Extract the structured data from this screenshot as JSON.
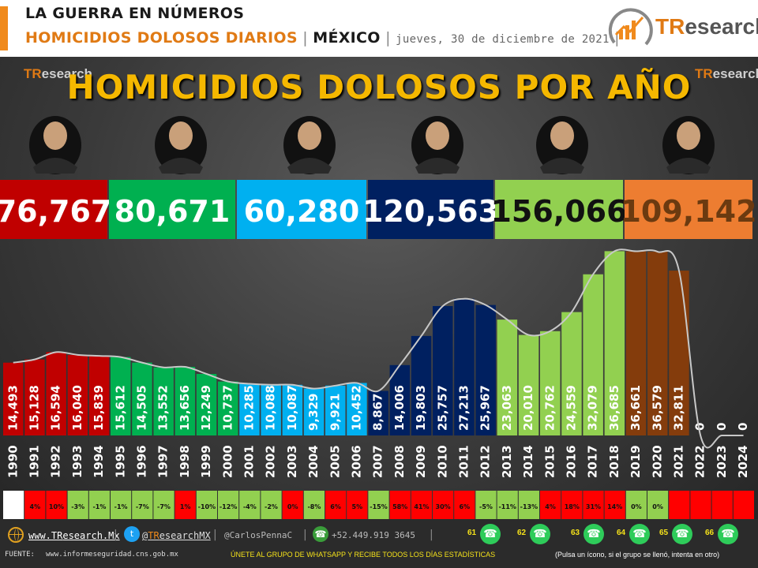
{
  "header": {
    "line1": "LA GUERRA EN NÚMEROS",
    "line2_main": "HOMICIDIOS DOLOSOS DIARIOS",
    "line2_sep1": " | ",
    "line2_country": "MÉXICO",
    "line2_sep2": " | ",
    "line2_date": "jueves,  30 de diciembre  de 2021",
    "line2_sep3": " |",
    "brand_tr": "TR",
    "brand_rest": "esearch"
  },
  "panel_logos": {
    "tr": "TR",
    "rest": "esearch"
  },
  "colors": {
    "salinas": "#c00000",
    "zedillo": "#00b050",
    "fox": "#00b0f0",
    "calderon": "#002060",
    "pena": "#92d050",
    "amlo": "#843c0c",
    "amlo_box": "#ed7d31",
    "accent": "#f08a1c",
    "title": "#f5b800",
    "pct_positive": "#ff0000",
    "pct_negative": "#92d050"
  },
  "presidents": [
    {
      "total": "76,767",
      "portrait": "president-salinas-portrait",
      "box_color": "#c00000",
      "text_color": "#ffffff"
    },
    {
      "total": "80,671",
      "portrait": "president-zedillo-portrait",
      "box_color": "#00b050",
      "text_color": "#ffffff"
    },
    {
      "total": "60,280",
      "portrait": "president-fox-portrait",
      "box_color": "#00b0f0",
      "text_color": "#ffffff"
    },
    {
      "total": "120,563",
      "portrait": "president-calderon-portrait",
      "box_color": "#002060",
      "text_color": "#ffffff"
    },
    {
      "total": "156,066",
      "portrait": "president-pena-portrait",
      "box_color": "#92d050",
      "text_color": "#111111"
    },
    {
      "total": "109,142",
      "portrait": "president-amlo-portrait",
      "box_color": "#ed7d31",
      "text_color": "#6b3a10"
    }
  ],
  "chart_data": {
    "type": "bar",
    "title": "HOMICIDIOS DOLOSOS POR AÑO",
    "categories": [
      "1990",
      "1991",
      "1992",
      "1993",
      "1994",
      "1995",
      "1996",
      "1997",
      "1998",
      "1999",
      "2000",
      "2001",
      "2002",
      "2003",
      "2004",
      "2005",
      "2006",
      "2007",
      "2008",
      "2009",
      "2010",
      "2011",
      "2012",
      "2013",
      "2014",
      "2015",
      "2016",
      "2017",
      "2018",
      "2019",
      "2020",
      "2021",
      "2022",
      "2023",
      "2024"
    ],
    "values": [
      14493,
      15128,
      16594,
      16040,
      15839,
      15612,
      14505,
      13552,
      13656,
      12249,
      10737,
      10285,
      10088,
      10087,
      9329,
      9921,
      10452,
      8867,
      14006,
      19803,
      25757,
      27213,
      25967,
      23063,
      20010,
      20762,
      24559,
      32079,
      36685,
      36661,
      36579,
      32811,
      0,
      0,
      0
    ],
    "value_labels": [
      "14,493",
      "15,128",
      "16,594",
      "16,040",
      "15,839",
      "15,612",
      "14,505",
      "13,552",
      "13,656",
      "12,249",
      "10,737",
      "10,285",
      "10,088",
      "10,087",
      "9,329",
      "9,921",
      "10,452",
      "8,867",
      "14,006",
      "19,803",
      "25,757",
      "27,213",
      "25,967",
      "23,063",
      "20,010",
      "20,762",
      "24,559",
      "32,079",
      "36,685",
      "36,661",
      "36,579",
      "32,811",
      "0",
      "0",
      "0"
    ],
    "bar_colors": [
      "#c00000",
      "#c00000",
      "#c00000",
      "#c00000",
      "#c00000",
      "#00b050",
      "#00b050",
      "#00b050",
      "#00b050",
      "#00b050",
      "#00b050",
      "#00b0f0",
      "#00b0f0",
      "#00b0f0",
      "#00b0f0",
      "#00b0f0",
      "#00b0f0",
      "#002060",
      "#002060",
      "#002060",
      "#002060",
      "#002060",
      "#002060",
      "#92d050",
      "#92d050",
      "#92d050",
      "#92d050",
      "#92d050",
      "#92d050",
      "#843c0c",
      "#843c0c",
      "#843c0c",
      "#843c0c",
      "#843c0c",
      "#843c0c"
    ],
    "trend_line": true,
    "ylim": [
      0,
      38000
    ],
    "grid": false,
    "pct_change": [
      "",
      "4%",
      "10%",
      "-3%",
      "-1%",
      "-1%",
      "-7%",
      "-7%",
      "1%",
      "-10%",
      "-12%",
      "-4%",
      "-2%",
      "0%",
      "-8%",
      "6%",
      "5%",
      "-15%",
      "58%",
      "41%",
      "30%",
      "6%",
      "-5%",
      "-11%",
      "-13%",
      "4%",
      "18%",
      "31%",
      "14%",
      "0%",
      "0%",
      "",
      "",
      "",
      ""
    ],
    "pct_colors": [
      "",
      "#ff0000",
      "#ff0000",
      "#92d050",
      "#92d050",
      "#92d050",
      "#92d050",
      "#92d050",
      "#ff0000",
      "#92d050",
      "#92d050",
      "#92d050",
      "#92d050",
      "#ff0000",
      "#92d050",
      "#ff0000",
      "#ff0000",
      "#92d050",
      "#ff0000",
      "#ff0000",
      "#ff0000",
      "#ff0000",
      "#92d050",
      "#92d050",
      "#92d050",
      "#ff0000",
      "#ff0000",
      "#ff0000",
      "#ff0000",
      "#92d050",
      "#92d050",
      "#ff0000",
      "#ff0000",
      "#ff0000",
      "#ff0000"
    ]
  },
  "footer": {
    "web_tr": "www.TR",
    "web_rest": "esearch.Mx",
    "twitter_prefix": "@",
    "twitter_tr": "TR",
    "twitter_rest": "esearchMX",
    "carlos": "@CarlosPennaC",
    "phone": "+52.449.919 3645",
    "fuente_label": "FUENTE:",
    "fuente_source": "www.informeseguridad.cns.gob.mx",
    "cta": "ÚNETE  AL GRUPO DE WHATSAPP Y RECIBE  TODOS LOS DÍAS ESTADÍSTICAS",
    "note": "(Pulsa un ícono, si el grupo se llenó, intenta en otro)",
    "wa_groups": [
      "61",
      "62",
      "63",
      "64",
      "65",
      "66"
    ]
  }
}
